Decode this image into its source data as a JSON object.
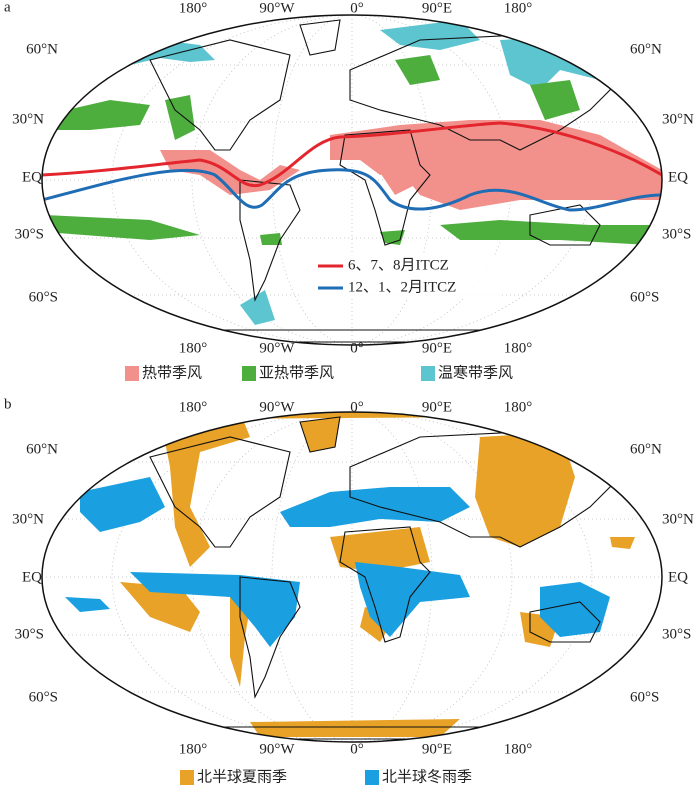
{
  "panels": [
    {
      "label": "a",
      "lon_labels_top": [
        "180°",
        "90°W",
        "0°",
        "90°E",
        "180°"
      ],
      "lon_labels_bottom": [
        "180°",
        "90°W",
        "0°",
        "90°E",
        "180°"
      ],
      "lat_labels_left": [
        "60°N",
        "30°N",
        "EQ",
        "30°S",
        "60°S"
      ],
      "lat_labels_right": [
        "60°N",
        "30°N",
        "EQ",
        "30°S",
        "60°S"
      ],
      "line_legend": [
        {
          "name": "6、7、8月ITCZ",
          "color": "#e3262e"
        },
        {
          "name": "12、1、2月ITCZ",
          "color": "#1e6db5"
        }
      ],
      "legend": [
        {
          "name": "热带季风",
          "color": "#f2918c"
        },
        {
          "name": "亚热带季风",
          "color": "#4dae3e"
        },
        {
          "name": "温寒带季风",
          "color": "#5cc5d0"
        }
      ]
    },
    {
      "label": "b",
      "lon_labels_top": [
        "180°",
        "90°W",
        "0°",
        "90°E",
        "180°"
      ],
      "lon_labels_bottom": [
        "180°",
        "90°W",
        "0°",
        "90°E",
        "180°"
      ],
      "lat_labels_left": [
        "60°N",
        "30°N",
        "EQ",
        "30°S",
        "60°S"
      ],
      "lat_labels_right": [
        "60°N",
        "30°N",
        "EQ",
        "30°S",
        "60°S"
      ],
      "legend": [
        {
          "name": "北半球夏雨季",
          "color": "#e8a227"
        },
        {
          "name": "北半球冬雨季",
          "color": "#1a9fe0"
        }
      ]
    }
  ]
}
